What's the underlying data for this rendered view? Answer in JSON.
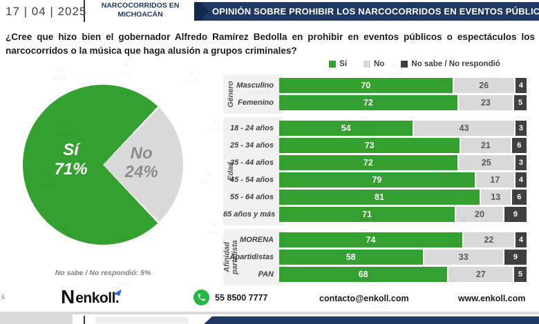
{
  "header": {
    "date": "17 | 04 | 2025",
    "title_line1": "NARCOCORRIDOS EN",
    "title_line2": "MICHOACÁN",
    "banner": "OPINIÓN SOBRE PROHIBIR LOS NARCOCORRIDOS EN EVENTOS PÚBLICOS"
  },
  "question": "¿Cree que hizo bien el gobernador Alfredo Ramírez Bedolla en prohibir en eventos públicos o espectáculos los narcocorridos o la música que haga alusión a grupos criminales?",
  "legend": [
    {
      "label": "Sí",
      "color": "#34A02F"
    },
    {
      "label": "No",
      "color": "#D9D9D9"
    },
    {
      "label": "No sabe / No respondió",
      "color": "#404040"
    }
  ],
  "chart_data": [
    {
      "type": "pie",
      "slices": [
        {
          "label": "Sí",
          "value": 71,
          "pct": "71%",
          "color": "#34A02F"
        },
        {
          "label": "No",
          "value": 24,
          "pct": "24%",
          "color": "#D9D9D9"
        }
      ],
      "note": "No sabe / No respondió: 5%",
      "note_value": 5
    },
    {
      "type": "bar",
      "stacked": true,
      "orientation": "horizontal",
      "xlim": [
        0,
        100
      ],
      "series_names": [
        "Sí",
        "No",
        "No sabe / No respondió"
      ],
      "series_colors": [
        "#34A02F",
        "#D9D9D9",
        "#404040"
      ],
      "groups": [
        {
          "name": "Género",
          "rows": [
            {
              "label": "Masculino",
              "values": [
                70,
                26,
                4
              ]
            },
            {
              "label": "Femenino",
              "values": [
                72,
                23,
                5
              ]
            }
          ]
        },
        {
          "name": "Edad",
          "rows": [
            {
              "label": "18 - 24 años",
              "values": [
                54,
                43,
                3
              ]
            },
            {
              "label": "25 - 34 años",
              "values": [
                73,
                21,
                6
              ]
            },
            {
              "label": "35 - 44 años",
              "values": [
                72,
                25,
                3
              ]
            },
            {
              "label": "45 - 54 años",
              "values": [
                79,
                17,
                4
              ]
            },
            {
              "label": "55 - 64 años",
              "values": [
                81,
                13,
                6
              ]
            },
            {
              "label": "65 años y más",
              "values": [
                71,
                20,
                9
              ]
            }
          ]
        },
        {
          "name": "Afinidad partidista",
          "rows": [
            {
              "label": "MORENA",
              "values": [
                74,
                22,
                4
              ]
            },
            {
              "label": "Apartidistas",
              "values": [
                58,
                33,
                9
              ]
            },
            {
              "label": "PAN",
              "values": [
                68,
                27,
                5
              ]
            }
          ]
        }
      ]
    }
  ],
  "footer": {
    "logo_text": "enkoll.",
    "logo_mark": "N",
    "phone": "55 8500 7777",
    "email": "contacto@enkoll.com",
    "website": "www.enkoll.com"
  },
  "page_number": "6",
  "watermark_text": "enkoll.",
  "colors": {
    "green": "#34A02F",
    "light_gray": "#D9D9D9",
    "dark_gray": "#404040",
    "navy": "#1F3864",
    "navy_dark": "#15294E",
    "whatsapp_green": "#25B73F",
    "group_panel": "#F1F1F1"
  }
}
